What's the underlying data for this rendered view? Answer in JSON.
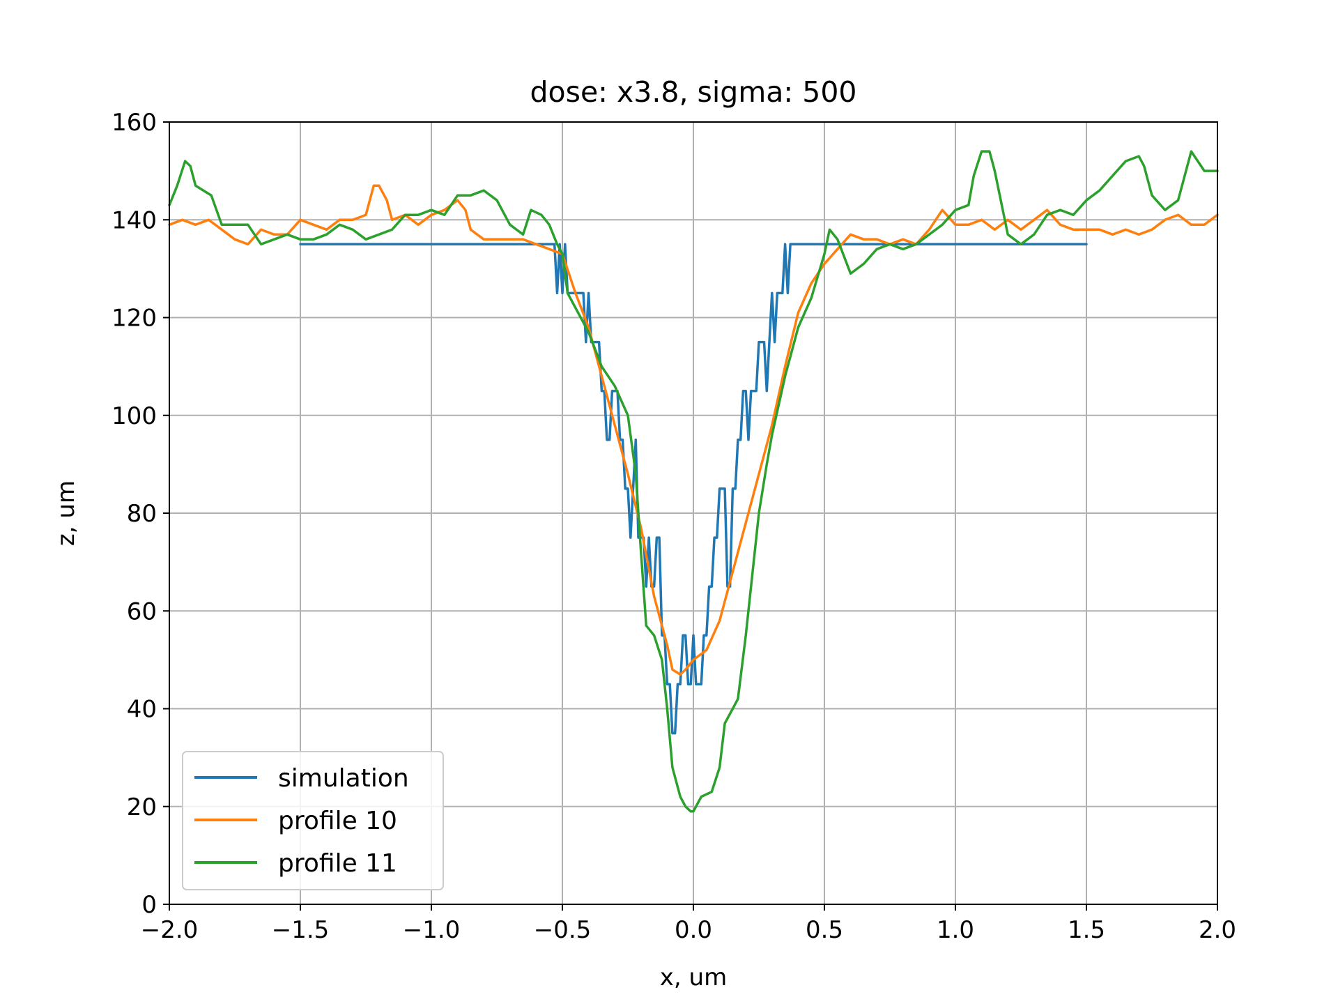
{
  "chart_data": {
    "type": "line",
    "title": "dose: x3.8, sigma: 500",
    "xlabel": "x, um",
    "ylabel": "z, um",
    "xlim": [
      -2.0,
      2.0
    ],
    "ylim": [
      0,
      160
    ],
    "xticks": [
      -2.0,
      -1.5,
      -1.0,
      -0.5,
      0.0,
      0.5,
      1.0,
      1.5,
      2.0
    ],
    "xtick_labels": [
      "−2.0",
      "−1.5",
      "−1.0",
      "−0.5",
      "0.0",
      "0.5",
      "1.0",
      "1.5",
      "2.0"
    ],
    "yticks": [
      0,
      20,
      40,
      60,
      80,
      100,
      120,
      140,
      160
    ],
    "ytick_labels": [
      "0",
      "20",
      "40",
      "60",
      "80",
      "100",
      "120",
      "140",
      "160"
    ],
    "grid": true,
    "legend_position": "lower-left",
    "series": [
      {
        "name": "simulation",
        "color": "#1f77b4",
        "x": [
          -1.5,
          -0.53,
          -0.52,
          -0.51,
          -0.5,
          -0.49,
          -0.48,
          -0.47,
          -0.46,
          -0.45,
          -0.44,
          -0.43,
          -0.42,
          -0.41,
          -0.4,
          -0.39,
          -0.38,
          -0.37,
          -0.36,
          -0.35,
          -0.34,
          -0.33,
          -0.32,
          -0.31,
          -0.3,
          -0.29,
          -0.28,
          -0.27,
          -0.26,
          -0.25,
          -0.24,
          -0.23,
          -0.22,
          -0.21,
          -0.2,
          -0.19,
          -0.18,
          -0.17,
          -0.16,
          -0.15,
          -0.14,
          -0.13,
          -0.12,
          -0.11,
          -0.1,
          -0.09,
          -0.08,
          -0.07,
          -0.06,
          -0.05,
          -0.04,
          -0.03,
          -0.02,
          -0.01,
          0.0,
          0.01,
          0.02,
          0.03,
          0.04,
          0.05,
          0.06,
          0.07,
          0.08,
          0.09,
          0.1,
          0.11,
          0.12,
          0.13,
          0.14,
          0.15,
          0.16,
          0.17,
          0.18,
          0.19,
          0.2,
          0.21,
          0.22,
          0.23,
          0.24,
          0.25,
          0.26,
          0.27,
          0.28,
          0.29,
          0.3,
          0.31,
          0.32,
          0.33,
          0.34,
          0.35,
          0.36,
          0.37,
          0.38,
          0.39,
          0.4,
          0.41,
          0.42,
          0.43,
          0.44,
          0.45,
          0.46,
          0.47,
          0.48,
          0.49,
          0.5,
          1.5
        ],
        "y": [
          135,
          135,
          125,
          135,
          125,
          135,
          125,
          125,
          125,
          125,
          125,
          125,
          125,
          115,
          125,
          115,
          115,
          115,
          115,
          105,
          105,
          95,
          95,
          105,
          105,
          105,
          95,
          95,
          85,
          85,
          75,
          85,
          95,
          75,
          75,
          75,
          65,
          75,
          65,
          65,
          75,
          75,
          55,
          55,
          45,
          45,
          35,
          35,
          45,
          45,
          55,
          55,
          45,
          45,
          55,
          45,
          45,
          45,
          55,
          55,
          65,
          65,
          75,
          75,
          85,
          85,
          85,
          65,
          65,
          85,
          85,
          95,
          95,
          105,
          105,
          95,
          105,
          105,
          105,
          115,
          115,
          115,
          105,
          115,
          125,
          115,
          125,
          125,
          125,
          135,
          125,
          135,
          135,
          135,
          135,
          135,
          135,
          135,
          135,
          135,
          135,
          135,
          135,
          135,
          135,
          135
        ]
      },
      {
        "name": "profile 10",
        "color": "#ff7f0e",
        "x": [
          -2.0,
          -1.95,
          -1.9,
          -1.85,
          -1.8,
          -1.75,
          -1.7,
          -1.65,
          -1.6,
          -1.55,
          -1.5,
          -1.45,
          -1.4,
          -1.35,
          -1.3,
          -1.25,
          -1.22,
          -1.2,
          -1.17,
          -1.15,
          -1.1,
          -1.05,
          -1.0,
          -0.95,
          -0.9,
          -0.87,
          -0.85,
          -0.8,
          -0.75,
          -0.7,
          -0.65,
          -0.6,
          -0.55,
          -0.5,
          -0.45,
          -0.4,
          -0.35,
          -0.3,
          -0.25,
          -0.2,
          -0.15,
          -0.1,
          -0.08,
          -0.05,
          -0.03,
          0.0,
          0.05,
          0.1,
          0.15,
          0.2,
          0.25,
          0.3,
          0.35,
          0.4,
          0.45,
          0.5,
          0.55,
          0.6,
          0.65,
          0.7,
          0.75,
          0.8,
          0.85,
          0.9,
          0.95,
          1.0,
          1.05,
          1.1,
          1.15,
          1.2,
          1.25,
          1.3,
          1.35,
          1.4,
          1.45,
          1.5,
          1.55,
          1.6,
          1.65,
          1.7,
          1.75,
          1.8,
          1.85,
          1.9,
          1.95,
          2.0
        ],
        "y": [
          139,
          140,
          139,
          140,
          138,
          136,
          135,
          138,
          137,
          137,
          140,
          139,
          138,
          140,
          140,
          141,
          147,
          147,
          144,
          140,
          141,
          139,
          141,
          142,
          144,
          142,
          138,
          136,
          136,
          136,
          136,
          135,
          134,
          133,
          125,
          118,
          108,
          98,
          88,
          77,
          63,
          53,
          48,
          47,
          48,
          50,
          52,
          58,
          68,
          78,
          88,
          98,
          110,
          121,
          127,
          131,
          134,
          137,
          136,
          136,
          135,
          136,
          135,
          138,
          142,
          139,
          139,
          140,
          138,
          140,
          138,
          140,
          142,
          139,
          138,
          138,
          138,
          137,
          138,
          137,
          138,
          140,
          141,
          139,
          139,
          141
        ]
      },
      {
        "name": "profile 11",
        "color": "#2ca02c",
        "x": [
          -2.0,
          -1.97,
          -1.94,
          -1.92,
          -1.9,
          -1.87,
          -1.84,
          -1.8,
          -1.77,
          -1.75,
          -1.7,
          -1.65,
          -1.6,
          -1.55,
          -1.5,
          -1.45,
          -1.4,
          -1.35,
          -1.3,
          -1.25,
          -1.2,
          -1.15,
          -1.1,
          -1.05,
          -1.0,
          -0.95,
          -0.9,
          -0.85,
          -0.8,
          -0.75,
          -0.7,
          -0.65,
          -0.62,
          -0.58,
          -0.55,
          -0.52,
          -0.5,
          -0.48,
          -0.45,
          -0.4,
          -0.35,
          -0.3,
          -0.25,
          -0.22,
          -0.2,
          -0.18,
          -0.15,
          -0.12,
          -0.1,
          -0.08,
          -0.05,
          -0.03,
          -0.01,
          0.0,
          0.03,
          0.07,
          0.1,
          0.12,
          0.15,
          0.17,
          0.2,
          0.23,
          0.25,
          0.28,
          0.3,
          0.35,
          0.4,
          0.45,
          0.5,
          0.52,
          0.55,
          0.6,
          0.65,
          0.7,
          0.75,
          0.8,
          0.85,
          0.9,
          0.95,
          1.0,
          1.05,
          1.07,
          1.1,
          1.13,
          1.15,
          1.2,
          1.25,
          1.3,
          1.35,
          1.4,
          1.45,
          1.5,
          1.55,
          1.6,
          1.65,
          1.7,
          1.72,
          1.75,
          1.8,
          1.85,
          1.9,
          1.95,
          2.0
        ],
        "y": [
          143,
          147,
          152,
          151,
          147,
          146,
          145,
          139,
          139,
          139,
          139,
          135,
          136,
          137,
          136,
          136,
          137,
          139,
          138,
          136,
          137,
          138,
          141,
          141,
          142,
          141,
          145,
          145,
          146,
          144,
          139,
          137,
          142,
          141,
          139,
          135,
          133,
          125,
          122,
          117,
          110,
          106,
          100,
          88,
          72,
          57,
          55,
          50,
          40,
          28,
          22,
          20,
          19,
          19,
          22,
          23,
          28,
          37,
          40,
          42,
          55,
          70,
          80,
          90,
          96,
          108,
          118,
          124,
          133,
          138,
          136,
          129,
          131,
          134,
          135,
          134,
          135,
          137,
          139,
          142,
          143,
          149,
          154,
          154,
          150,
          137,
          135,
          137,
          141,
          142,
          141,
          144,
          146,
          149,
          152,
          153,
          151,
          145,
          142,
          144,
          154,
          150,
          150
        ]
      }
    ]
  }
}
